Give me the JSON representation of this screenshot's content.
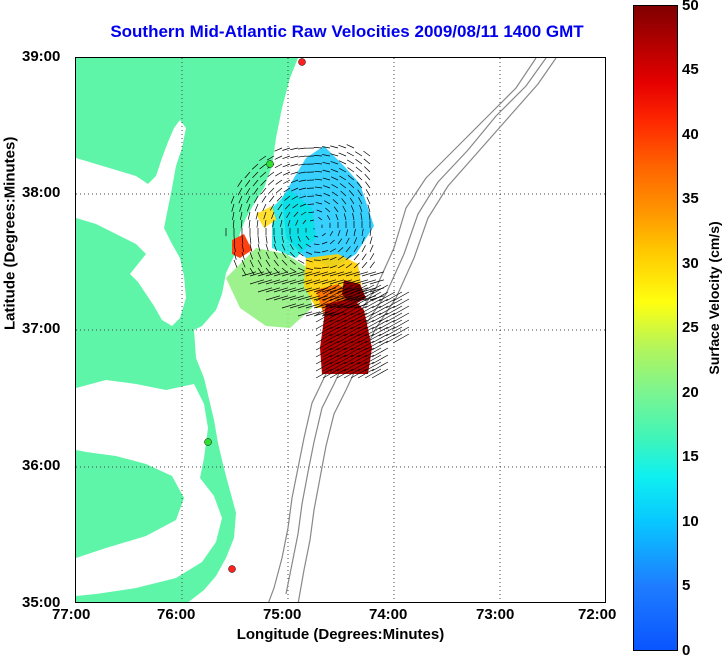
{
  "title": "Southern Mid-Atlantic Raw Velocities 2009/08/11 1400 GMT",
  "axes": {
    "x_label": "Longitude (Degrees:Minutes)",
    "y_label": "Latitude (Degrees:Minutes)",
    "x_ticks": [
      "77:00",
      "76:00",
      "75:00",
      "74:00",
      "73:00",
      "72:00"
    ],
    "y_ticks": [
      "39:00",
      "38:00",
      "37:00",
      "36:00",
      "35:00"
    ]
  },
  "colorbar": {
    "label": "Surface Velocity (cm/s)",
    "ticks": [
      "50",
      "45",
      "40",
      "35",
      "30",
      "25",
      "20",
      "15",
      "10",
      "5",
      "0"
    ]
  },
  "colors": {
    "land": "#5ef5a8",
    "title": "#0000ee",
    "bathymetry": "#888888",
    "station": "#ff2020"
  },
  "stations": [
    "red",
    "green",
    "green",
    "red"
  ]
}
